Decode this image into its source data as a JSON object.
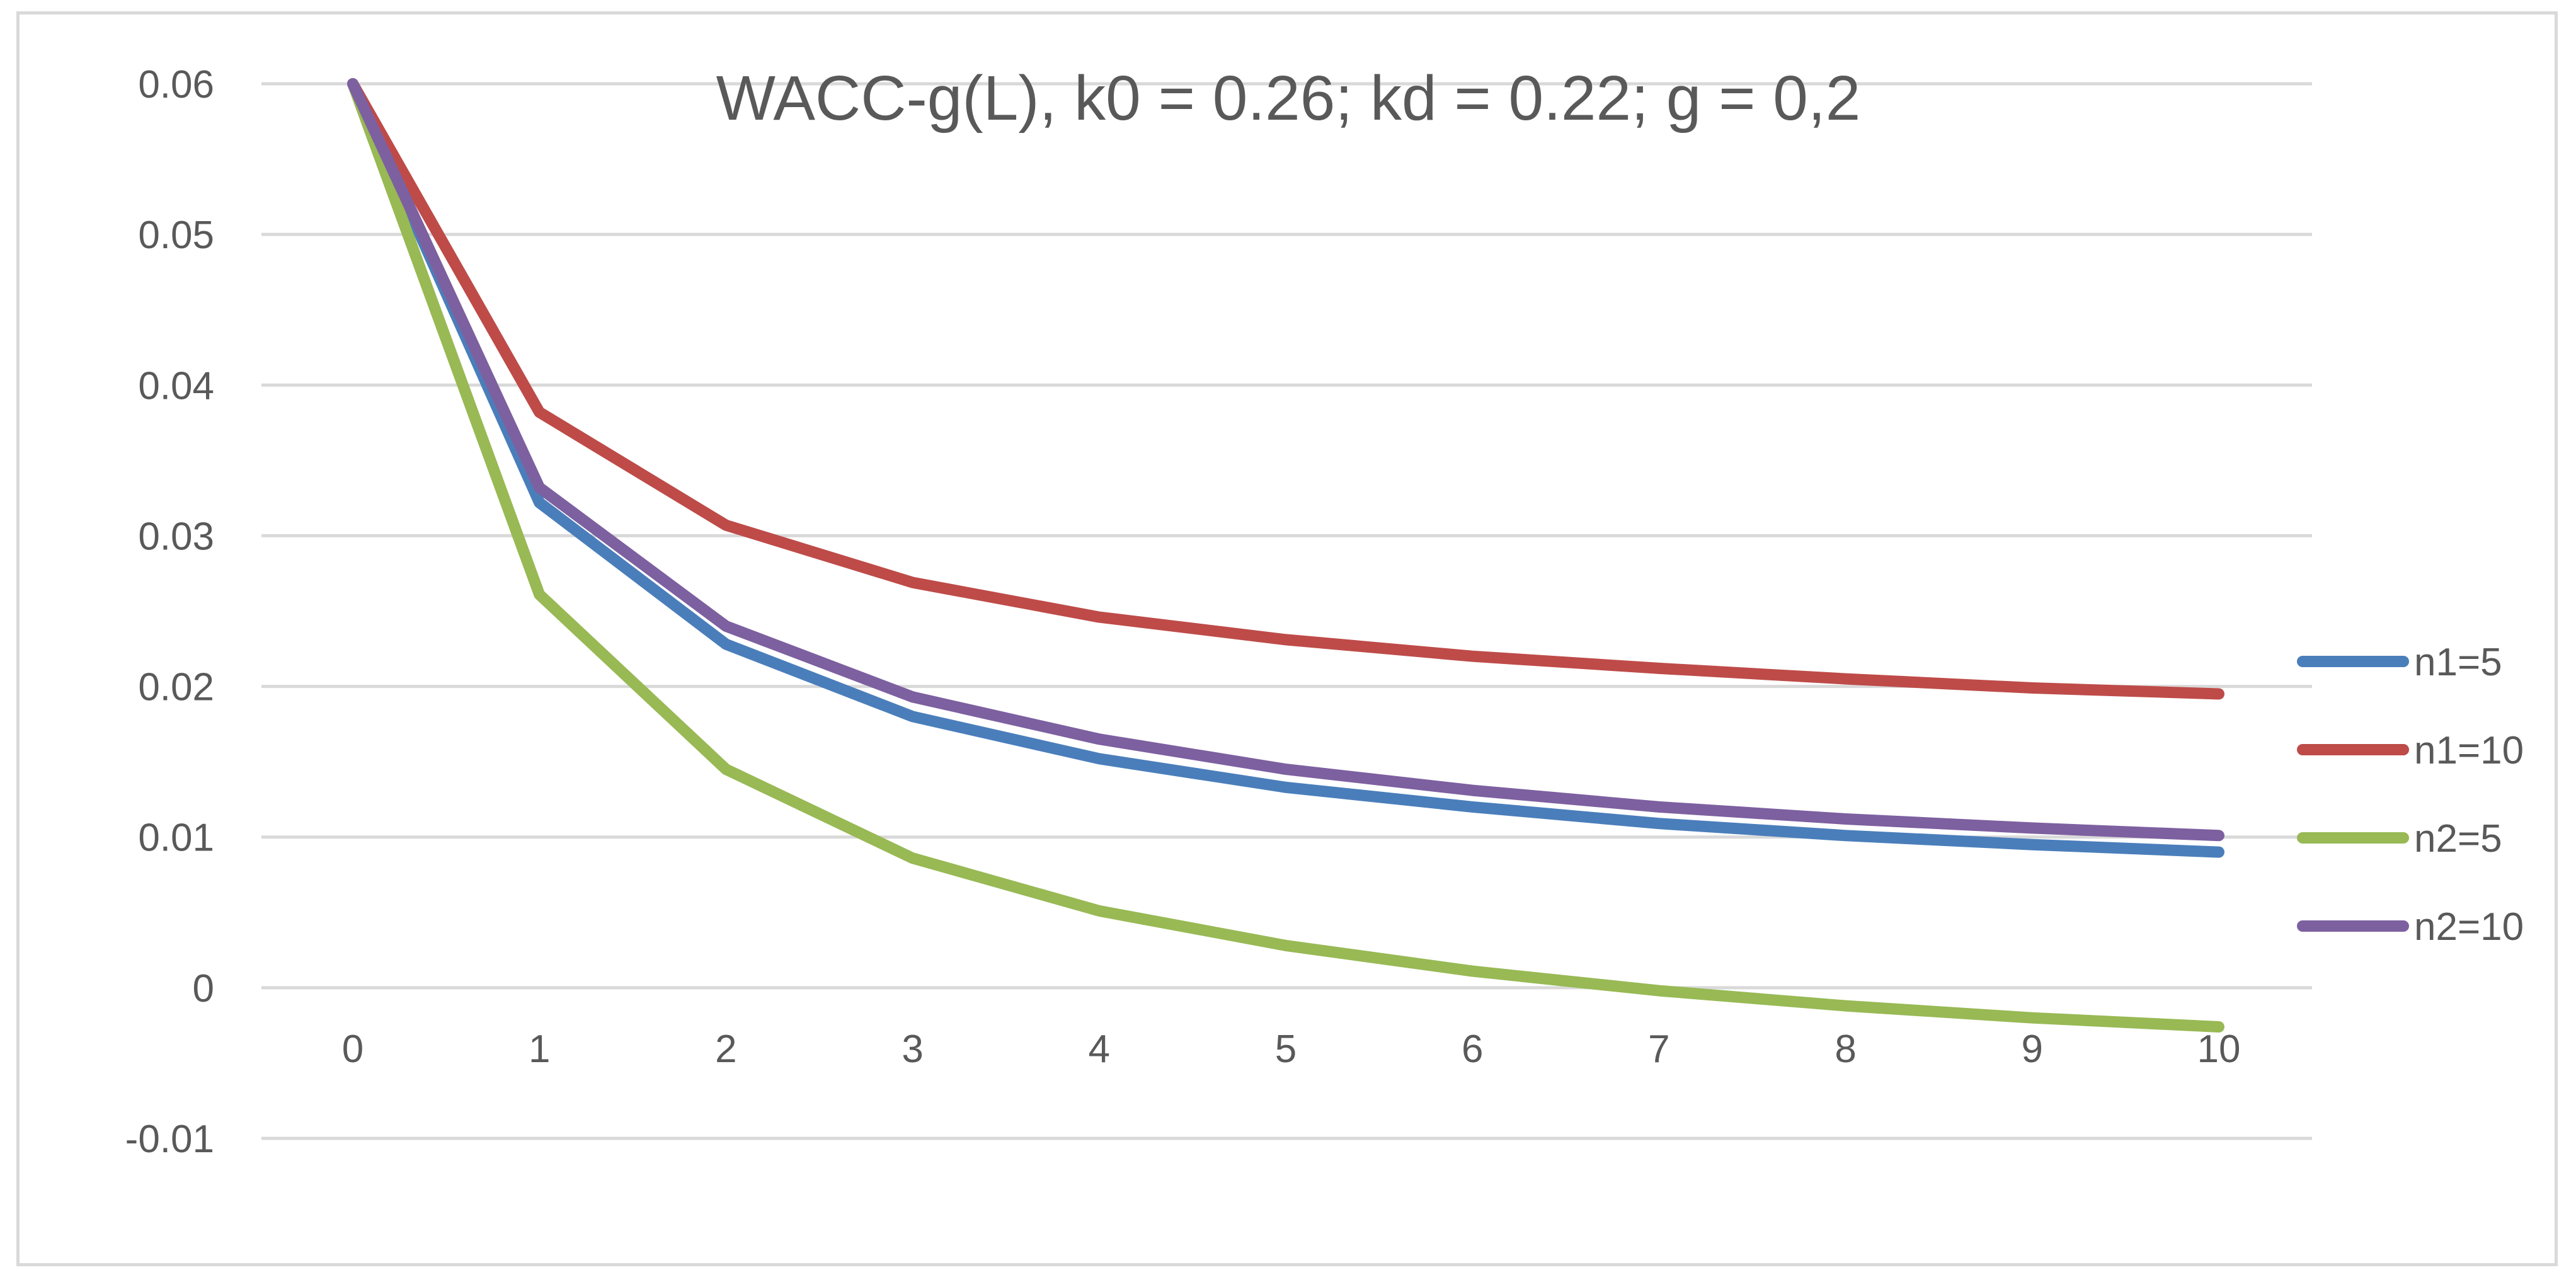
{
  "chart_data": {
    "type": "line",
    "title": "WACC-g(L), k0 = 0.26; kd = 0.22; g = 0,2",
    "xlabel": "",
    "ylabel": "",
    "categories": [
      "0",
      "1",
      "2",
      "3",
      "4",
      "5",
      "6",
      "7",
      "8",
      "9",
      "10"
    ],
    "x": [
      0,
      1,
      2,
      3,
      4,
      5,
      6,
      7,
      8,
      9,
      10
    ],
    "ylim": [
      -0.01,
      0.06
    ],
    "yticks": [
      0.06,
      0.05,
      0.04,
      0.03,
      0.02,
      0.01,
      0,
      -0.01
    ],
    "ytick_labels": [
      "0.06",
      "0.05",
      "0.04",
      "0.03",
      "0.02",
      "0.01",
      "0",
      "-0.01"
    ],
    "grid": true,
    "legend_position": "right",
    "series": [
      {
        "name": "n1=5",
        "color": "#4a7ebb",
        "values": [
          0.06,
          0.0322,
          0.0228,
          0.018,
          0.0152,
          0.0133,
          0.012,
          0.0109,
          0.0101,
          0.0095,
          0.009
        ]
      },
      {
        "name": "n1=10",
        "color": "#be4b48",
        "values": [
          0.06,
          0.0382,
          0.0307,
          0.0269,
          0.0246,
          0.0231,
          0.022,
          0.0212,
          0.0205,
          0.0199,
          0.0195
        ]
      },
      {
        "name": "n2=5",
        "color": "#98b954",
        "values": [
          0.06,
          0.0261,
          0.0145,
          0.0086,
          0.0051,
          0.0028,
          0.0011,
          -0.0002,
          -0.0012,
          -0.002,
          -0.0026
        ]
      },
      {
        "name": "n2=10",
        "color": "#7d60a0",
        "values": [
          0.06,
          0.0332,
          0.024,
          0.0193,
          0.0165,
          0.0145,
          0.0131,
          0.012,
          0.0112,
          0.0106,
          0.0101
        ]
      }
    ]
  }
}
